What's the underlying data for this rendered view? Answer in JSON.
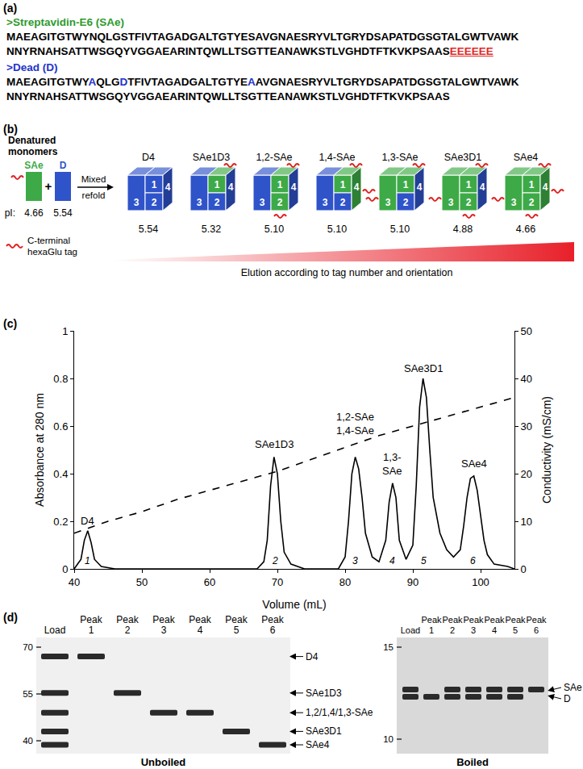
{
  "panel_a": {
    "label": "(a)",
    "sequences": [
      {
        "header": ">Streptavidin-E6 (SAe)",
        "color": "#2e9a2e",
        "lines": [
          [
            {
              "text": "MAEAGITGTWYNQLGSTFIVTAGADGALTGTYESAVGNAESRYVLTGRYDSAPATDGSGTALGWTVAWK"
            }
          ],
          [
            {
              "text": "NNYRNAHSATTWSGQYVGGAEARINTQWLLTSGTTEANAWKSTLVGHDTFTKVKPSAAS"
            },
            {
              "text": "EEEEEE",
              "color": "#e02828",
              "underline": true
            }
          ]
        ]
      },
      {
        "header": ">Dead (D)",
        "color": "#2233cc",
        "lines": [
          [
            {
              "text": "MAEAGITGTWY"
            },
            {
              "text": "A",
              "color": "#2233cc"
            },
            {
              "text": "QLG"
            },
            {
              "text": "D",
              "color": "#2233cc"
            },
            {
              "text": "TFIVTAGADGALTGTYE"
            },
            {
              "text": "A",
              "color": "#2233cc"
            },
            {
              "text": "AVGNAESRYVLTGRYDSAPATDGSGTALGWTVAWK"
            }
          ],
          [
            {
              "text": "NNYRNAHSATTWSGQYVGGAEARINTQWLLTSGTTEANAWKSTLVGHDTFTKVKPSAAS"
            }
          ]
        ]
      }
    ]
  },
  "panel_b": {
    "label": "(b)",
    "monomers_title": [
      "Denatured",
      "monomers"
    ],
    "monomers": [
      {
        "name": "SAe",
        "pI": "4.66",
        "color": "#3daa47",
        "tag": true
      },
      {
        "name": "D",
        "pI": "5.54",
        "color": "#2f53c9",
        "tag": false
      }
    ],
    "pI_label": "pI:",
    "plus": "+",
    "refold": [
      "Mixed",
      "refold"
    ],
    "tag_color": "#e02020",
    "tag_legend": [
      "C-terminal",
      "hexaGlu tag"
    ],
    "subunits": [
      1,
      2,
      3,
      4
    ],
    "tetramers": [
      {
        "name": "D4",
        "pI": "5.54",
        "sae": []
      },
      {
        "name": "SAe1D3",
        "pI": "5.32",
        "sae": [
          1
        ]
      },
      {
        "name": "1,2-SAe",
        "pI": "5.10",
        "sae": [
          1,
          2
        ]
      },
      {
        "name": "1,4-SAe",
        "pI": "5.10",
        "sae": [
          1,
          4
        ]
      },
      {
        "name": "1,3-SAe",
        "pI": "5.10",
        "sae": [
          1,
          3
        ]
      },
      {
        "name": "SAe3D1",
        "pI": "4.88",
        "sae": [
          1,
          2,
          3
        ]
      },
      {
        "name": "SAe4",
        "pI": "4.66",
        "sae": [
          1,
          2,
          3,
          4
        ]
      }
    ],
    "elution": "Elution according to tag number and orientation"
  },
  "panel_c_label": "(c)",
  "chart_data": {
    "type": "line",
    "x_label": "Volume (mL)",
    "y_label": "Absorbance at 280 nm",
    "y2_label": "Conductivity (mS/cm)",
    "xlim": [
      40,
      105
    ],
    "xticks": [
      40,
      50,
      60,
      70,
      80,
      90,
      100
    ],
    "ylim": [
      0,
      1
    ],
    "yticks": [
      0,
      0.2,
      0.4,
      0.6,
      0.8,
      1
    ],
    "y2lim": [
      0,
      50
    ],
    "y2ticks": [
      0,
      10,
      20,
      30,
      40,
      50
    ],
    "grid": false,
    "series": [
      {
        "color": "#000000",
        "line_style": "solid",
        "x": [
          40,
          41,
          41.5,
          42,
          42.5,
          43,
          44,
          46,
          60,
          67,
          68,
          68.5,
          69,
          69.5,
          70,
          70.5,
          71,
          72,
          74,
          79,
          80,
          80.5,
          81,
          81.5,
          82,
          82.5,
          83,
          84,
          85,
          86,
          86.5,
          87,
          87.5,
          88,
          89,
          90,
          90.5,
          91,
          91.5,
          92,
          92.5,
          93,
          94,
          95,
          96,
          97,
          97.5,
          98,
          98.5,
          99,
          99.5,
          100,
          100.5,
          101,
          102,
          104,
          105
        ],
        "values": [
          0,
          0.04,
          0.12,
          0.16,
          0.11,
          0.04,
          0.01,
          0,
          0,
          0,
          0.03,
          0.12,
          0.35,
          0.47,
          0.4,
          0.2,
          0.07,
          0.02,
          0,
          0,
          0.05,
          0.2,
          0.4,
          0.47,
          0.42,
          0.3,
          0.15,
          0.05,
          0.03,
          0.12,
          0.28,
          0.36,
          0.3,
          0.12,
          0.04,
          0.1,
          0.35,
          0.68,
          0.8,
          0.72,
          0.5,
          0.3,
          0.15,
          0.08,
          0.05,
          0.08,
          0.18,
          0.3,
          0.38,
          0.39,
          0.33,
          0.22,
          0.12,
          0.06,
          0.02,
          0.01,
          0
        ]
      },
      {
        "color": "#000000",
        "line_style": "dashed",
        "axis": "y2",
        "x": [
          40,
          45,
          50,
          55,
          60,
          65,
          70,
          75,
          80,
          85,
          90,
          95,
          100,
          105
        ],
        "values": [
          7.5,
          10,
          12,
          14.5,
          16.5,
          18.5,
          20.5,
          23,
          25.5,
          28,
          30,
          32,
          34,
          36
        ]
      }
    ],
    "annotations": [
      {
        "lines": [
          "D4"
        ],
        "x": 42,
        "y": 0.17
      },
      {
        "lines": [
          "SAe1D3"
        ],
        "x": 69.5,
        "y": 0.49
      },
      {
        "lines": [
          "1,2-SAe",
          "1,4-SAe"
        ],
        "x": 81.5,
        "y": 0.55
      },
      {
        "lines": [
          "1,3-",
          "SAe"
        ],
        "x": 87,
        "y": 0.38
      },
      {
        "lines": [
          "SAe3D1"
        ],
        "x": 91.5,
        "y": 0.81
      },
      {
        "lines": [
          "SAe4"
        ],
        "x": 99,
        "y": 0.41
      }
    ],
    "peak_numbers": [
      {
        "text": "1",
        "x": 42,
        "y": 0.005
      },
      {
        "text": "2",
        "x": 69.6,
        "y": 0.005
      },
      {
        "text": "3",
        "x": 81.5,
        "y": 0.005
      },
      {
        "text": "4",
        "x": 87,
        "y": 0.005
      },
      {
        "text": "5",
        "x": 91.6,
        "y": 0.005
      },
      {
        "text": "6",
        "x": 98.9,
        "y": 0.005
      }
    ]
  },
  "panel_d": {
    "label": "(d)",
    "gels": [
      {
        "caption": "Unboiled",
        "lanes": [
          [
            "Load"
          ],
          [
            "Peak",
            "1"
          ],
          [
            "Peak",
            "2"
          ],
          [
            "Peak",
            "3"
          ],
          [
            "Peak",
            "4"
          ],
          [
            "Peak",
            "5"
          ],
          [
            "Peak",
            "6"
          ]
        ],
        "markers": [
          70,
          55,
          40
        ],
        "bands": [
          {
            "label": "D4",
            "kDa": 67
          },
          {
            "label": "SAe1D3",
            "kDa": 55.3
          },
          {
            "label": "1,2/1,4/1,3-SAe",
            "kDa": 49
          },
          {
            "label": "SAe3D1",
            "kDa": 43
          },
          {
            "label": "SAe4",
            "kDa": 38.7
          }
        ],
        "lane_bands": [
          [
            0,
            1,
            2,
            3,
            4
          ],
          [
            0
          ],
          [
            1
          ],
          [
            2
          ],
          [
            2
          ],
          [
            3
          ],
          [
            4
          ]
        ]
      },
      {
        "caption": "Boiled",
        "lanes": [
          [
            "Load"
          ],
          [
            "Peak",
            "1"
          ],
          [
            "Peak",
            "2"
          ],
          [
            "Peak",
            "3"
          ],
          [
            "Peak",
            "4"
          ],
          [
            "Peak",
            "5"
          ],
          [
            "Peak",
            "6"
          ]
        ],
        "markers": [
          15,
          10
        ],
        "bands": [
          {
            "label": "SAe",
            "kDa": 12.7
          },
          {
            "label": "D",
            "kDa": 12.3
          }
        ],
        "lane_bands": [
          [
            0,
            1
          ],
          [
            1
          ],
          [
            0,
            1
          ],
          [
            0,
            1
          ],
          [
            0,
            1
          ],
          [
            0,
            1
          ],
          [
            0
          ]
        ]
      }
    ]
  }
}
